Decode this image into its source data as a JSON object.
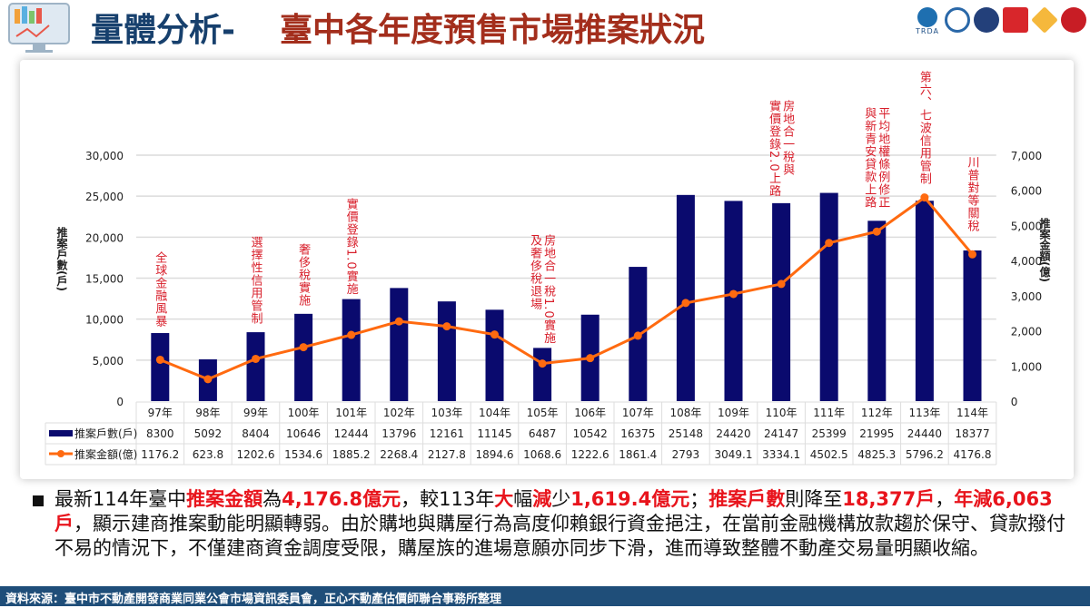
{
  "header": {
    "title_part1": "量體分析-",
    "title_part2": "臺中各年度預售市場推案狀況",
    "org_logo_text": "TRDA"
  },
  "chart_data": {
    "type": "bar+line",
    "categories": [
      "97年",
      "98年",
      "99年",
      "100年",
      "101年",
      "102年",
      "103年",
      "104年",
      "105年",
      "106年",
      "107年",
      "108年",
      "109年",
      "110年",
      "111年",
      "112年",
      "113年",
      "114年"
    ],
    "series": [
      {
        "name": "推案戶數(戶)",
        "type": "bar",
        "axis": "left",
        "color": "#0a0a6e",
        "values": [
          8300,
          5092,
          8404,
          10646,
          12444,
          13796,
          12161,
          11145,
          6487,
          10542,
          16375,
          25148,
          24420,
          24147,
          25399,
          21995,
          24440,
          18377
        ]
      },
      {
        "name": "推案金額(億)",
        "type": "line",
        "axis": "right",
        "color": "#ff6a10",
        "values": [
          1176.2,
          623.8,
          1202.6,
          1534.6,
          1885.2,
          2268.4,
          2127.8,
          1894.6,
          1068.6,
          1222.6,
          1861.4,
          2793,
          3049.1,
          3334.1,
          4502.5,
          4825.3,
          5796.2,
          4176.8
        ]
      }
    ],
    "ylabel_left": "推案戶數(戶)",
    "ylabel_right": "推案金額(億)",
    "ylim_left": [
      0,
      30000
    ],
    "ylim_right": [
      0,
      7000
    ],
    "yticks_left": [
      "0",
      "5,000",
      "10,000",
      "15,000",
      "20,000",
      "25,000",
      "30,000"
    ],
    "yticks_right": [
      "0",
      "1,000",
      "2,000",
      "3,000",
      "4,000",
      "5,000",
      "6,000",
      "7,000"
    ],
    "grid": true,
    "legend": "data-table",
    "annotations": [
      {
        "category": "97年",
        "lines": [
          "全球金融風暴"
        ]
      },
      {
        "category": "99年",
        "lines": [
          "選擇性信用管制"
        ]
      },
      {
        "category": "100年",
        "lines": [
          "奢侈稅實施"
        ]
      },
      {
        "category": "101年",
        "lines": [
          "實價登錄1.0實施"
        ]
      },
      {
        "category": "105年",
        "lines": [
          "房地合一稅1.0實施",
          "及奢侈稅退場"
        ]
      },
      {
        "category": "110年",
        "lines": [
          "房地合一稅與",
          "實價登錄2.0上路"
        ]
      },
      {
        "category": "112年",
        "lines": [
          "平均地權條例修正",
          "與新青安貸款上路"
        ]
      },
      {
        "category": "113年",
        "lines": [
          "第六、七波信用管制"
        ]
      },
      {
        "category": "114年",
        "lines": [
          "川普對等關稅"
        ]
      }
    ]
  },
  "summary": {
    "segments": [
      {
        "t": "最新114年臺中",
        "red": false
      },
      {
        "t": "推案金額",
        "red": true
      },
      {
        "t": "為",
        "red": false
      },
      {
        "t": "4,176.8億元",
        "red": true
      },
      {
        "t": "，較113年",
        "red": false
      },
      {
        "t": "大",
        "red": true
      },
      {
        "t": "幅",
        "red": false
      },
      {
        "t": "減",
        "red": true
      },
      {
        "t": "少",
        "red": false
      },
      {
        "t": "1,619.4億元",
        "red": true
      },
      {
        "t": "；",
        "red": false
      },
      {
        "t": "推案戶數",
        "red": true
      },
      {
        "t": "則降至",
        "red": false
      },
      {
        "t": "18,377戶",
        "red": true
      },
      {
        "t": "，",
        "red": false
      },
      {
        "t": "年減6,063戶",
        "red": true
      },
      {
        "t": "，顯示建商推案動能明顯轉弱。由於購地與購屋行為高度仰賴銀行資金挹注，在當前金融機構放款趨於保守、貸款撥付不易的情況下，不僅建商資金調度受限，購屋族的進場意願亦同步下滑，進而導致整體不動產交易量明顯收縮。",
        "red": false
      }
    ]
  },
  "footer": {
    "source": "資料來源：臺中市不動產開發商業同業公會市場資訊委員會，正心不動產估價師聯合事務所整理"
  }
}
